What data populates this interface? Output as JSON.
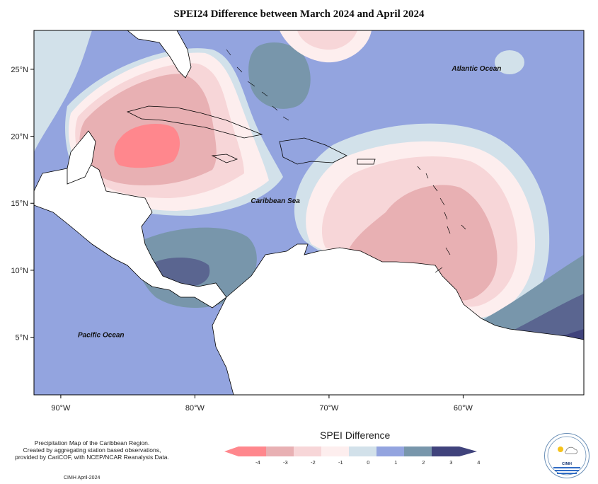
{
  "title": "SPEI24 Difference between March 2024 and April 2024",
  "map": {
    "lon_range": [
      -92,
      -51
    ],
    "lat_range": [
      0.7,
      27.9
    ],
    "lat_ticks": [
      {
        "value": 25,
        "label": "25°N"
      },
      {
        "value": 20,
        "label": "20°N"
      },
      {
        "value": 15,
        "label": "15°N"
      },
      {
        "value": 10,
        "label": "10°N"
      },
      {
        "value": 5,
        "label": "5°N"
      }
    ],
    "lon_ticks": [
      {
        "value": -90,
        "label": "90°W"
      },
      {
        "value": -80,
        "label": "80°W"
      },
      {
        "value": -70,
        "label": "70°W"
      },
      {
        "value": -60,
        "label": "60°W"
      }
    ],
    "place_labels": [
      {
        "name": "atlantic",
        "text": "Atlantic Ocean",
        "lon": -59,
        "lat": 24.9
      },
      {
        "name": "caribbean",
        "text": "Caribbean Sea",
        "lon": -74,
        "lat": 15
      },
      {
        "name": "pacific",
        "text": "Pacific Ocean",
        "lon": -87,
        "lat": 5
      }
    ]
  },
  "legend": {
    "title": "SPEI Difference",
    "ticks": [
      "-4",
      "-3",
      "-2",
      "-1",
      "0",
      "1",
      "2",
      "3",
      "4"
    ],
    "colors": [
      "#ff878d",
      "#e8b0b3",
      "#f7d6d8",
      "#fdeeee",
      "#d2e1ea",
      "#93a4df",
      "#7896ab",
      "#5a6590",
      "#40437c"
    ]
  },
  "footnote": {
    "line1": "Precipitation Map of the Caribbean Region.",
    "line2": "Created by aggregating station based observations,",
    "line3": "provided by CariCOF, with NCEP/NCAR Reanalysis Data."
  },
  "credit": "CIMH April-2024",
  "logo": {
    "text": "CIMH",
    "name": "cimh-logo"
  }
}
